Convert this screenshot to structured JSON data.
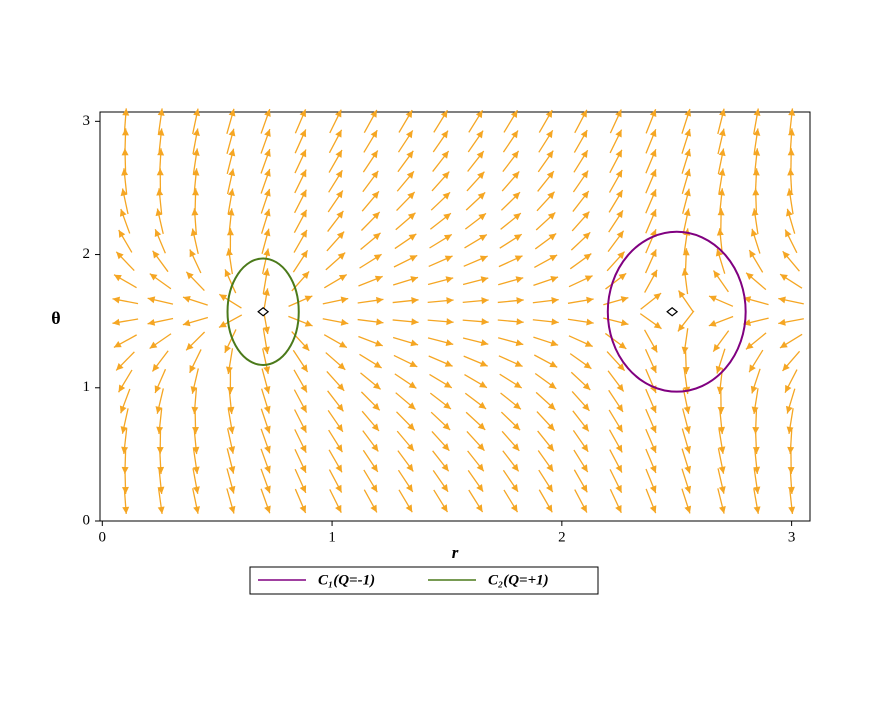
{
  "chart_data": {
    "type": "vector_field",
    "xlabel": "r",
    "ylabel": "θ",
    "xlim": [
      -0.01,
      3.08
    ],
    "ylim": [
      0,
      3.07
    ],
    "xticks": [
      0,
      1,
      2,
      3
    ],
    "yticks": [
      0,
      1,
      2,
      3
    ],
    "arrow_color": "#f5a623",
    "critical_points": [
      {
        "x": 2.48,
        "y": 1.5708
      },
      {
        "x": 0.7,
        "y": 1.5708
      }
    ],
    "series": [
      {
        "name": "C₁(Q=-1)",
        "color": "#800080",
        "center": [
          2.5,
          1.5708
        ],
        "radii": [
          0.3,
          0.6
        ]
      },
      {
        "name": "C₂(Q=+1)",
        "color": "#4b7a1a",
        "center": [
          0.7,
          1.5708
        ],
        "radii": [
          0.155,
          0.4
        ]
      }
    ],
    "legend": "bottom"
  }
}
